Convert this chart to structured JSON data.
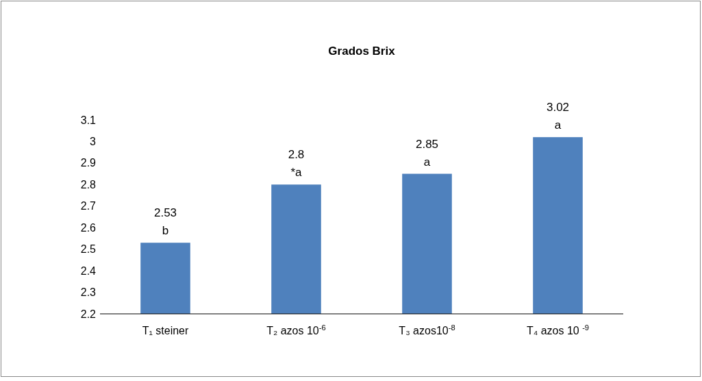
{
  "chart_data": {
    "type": "bar",
    "title": "Grados Brix",
    "categories": [
      "T₁ steiner",
      "T₂ azos 10$^{-6}$",
      "T₃ azos10$^{-8}$",
      "T₄ azos 10 $^{-9}$"
    ],
    "values": [
      2.53,
      2.8,
      2.85,
      3.02
    ],
    "color": "#4f81bd",
    "ylim": [
      2.2,
      3.1
    ],
    "yticks": [
      2.2,
      2.3,
      2.4,
      2.5,
      2.6,
      2.7,
      2.8,
      2.9,
      3,
      3.1
    ],
    "grid": false,
    "data_labels": true,
    "annotations": [
      {
        "text": "b",
        "x": "T₁ steiner",
        "y": 2.53
      },
      {
        "text": "*a",
        "x": "T₂ azos 10$^{-6}$",
        "y": 2.8
      },
      {
        "text": "a",
        "x": "T₃ azos10$^{-8}$",
        "y": 2.85
      },
      {
        "text": "a",
        "x": "T₄ azos 10 $^{-9}$",
        "y": 3.02
      }
    ]
  }
}
